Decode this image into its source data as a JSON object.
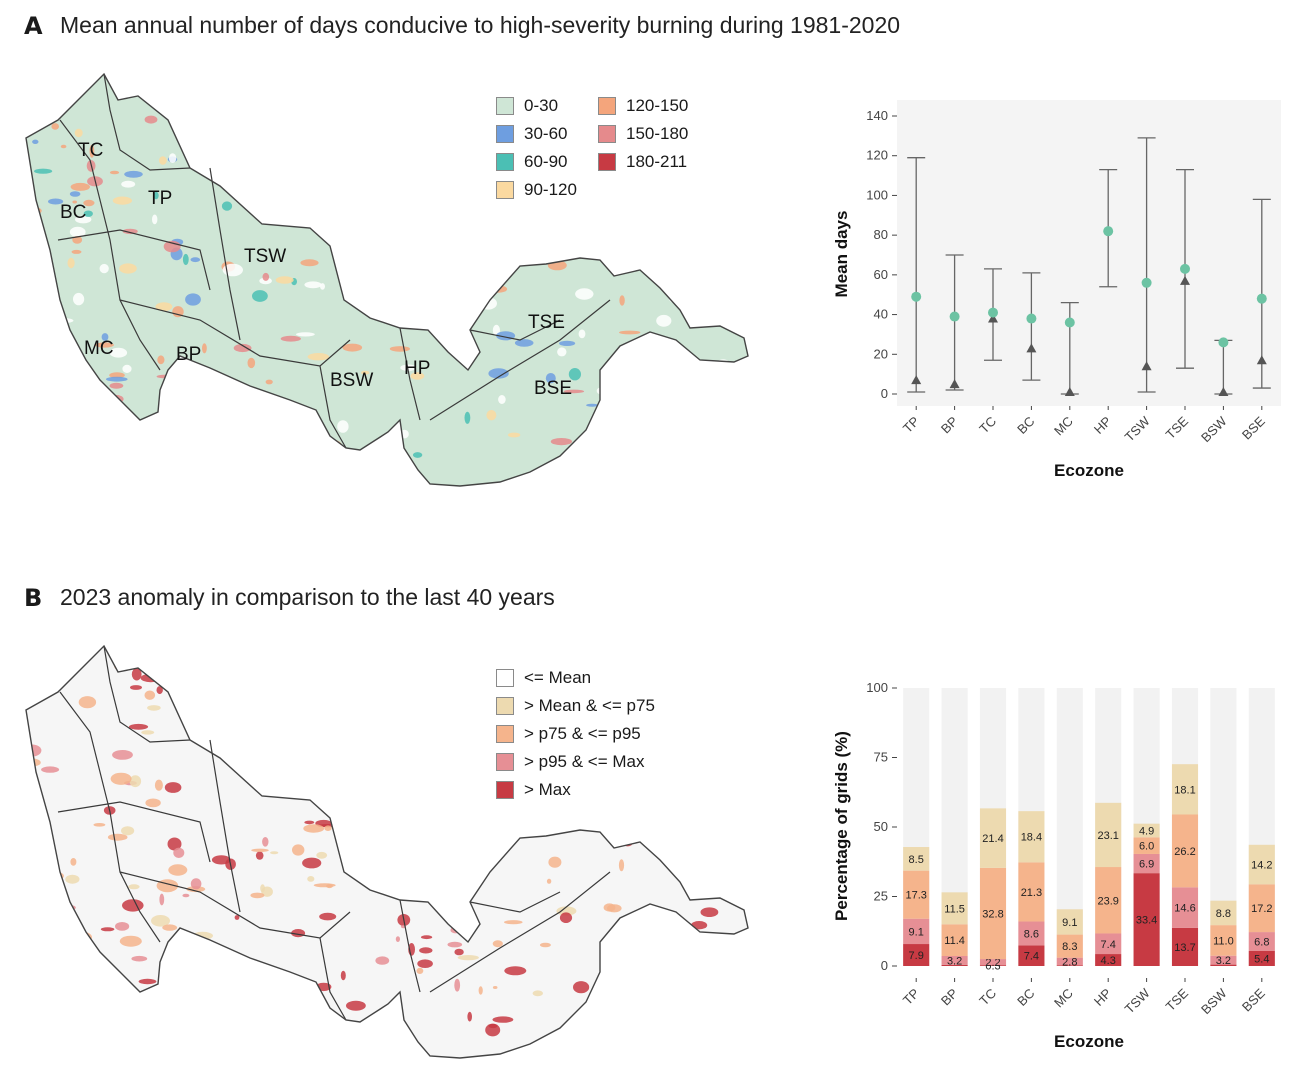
{
  "panel_a": {
    "letter": "A",
    "title": "Mean annual number of days conducive to high-severity burning during 1981-2020",
    "map_labels": [
      "TC",
      "TP",
      "BC",
      "TSW",
      "MC",
      "BP",
      "BSW",
      "HP",
      "TSE",
      "BSE"
    ],
    "legend": [
      {
        "label": "0-30",
        "color": "#cfe6d6"
      },
      {
        "label": "30-60",
        "color": "#6e9ee0"
      },
      {
        "label": "60-90",
        "color": "#4bbfb4"
      },
      {
        "label": "90-120",
        "color": "#fbd9a0"
      },
      {
        "label": "120-150",
        "color": "#f4a57c"
      },
      {
        "label": "150-180",
        "color": "#e58a8c"
      },
      {
        "label": "180-211",
        "color": "#c73a43"
      }
    ]
  },
  "panel_b": {
    "letter": "B",
    "title": "2023 anomaly in comparison to the last 40 years",
    "legend": [
      {
        "label": "<= Mean",
        "color": "#ffffff"
      },
      {
        "label": "> Mean & <= p75",
        "color": "#eddab0"
      },
      {
        "label": "> p75 & <= p95",
        "color": "#f5b48c"
      },
      {
        "label": "> p95 & <= Max",
        "color": "#e68f95"
      },
      {
        "label": "> Max",
        "color": "#c73a43"
      }
    ]
  },
  "chart_data": [
    {
      "type": "scatter",
      "xlabel": "Ecozone",
      "ylabel": "Mean days",
      "ylim": [
        0,
        140
      ],
      "yticks": [
        "0",
        "20",
        "40",
        "60",
        "80",
        "100",
        "120",
        "140"
      ],
      "categories": [
        "TP",
        "BP",
        "TC",
        "BC",
        "MC",
        "HP",
        "TSW",
        "TSE",
        "BSW",
        "BSE"
      ],
      "mean_values": [
        49,
        39,
        41,
        38,
        36,
        82,
        56,
        63,
        26,
        48
      ],
      "triangle_values": [
        7,
        5,
        38,
        23,
        1,
        null,
        14,
        57,
        1,
        17
      ],
      "range_min": [
        1,
        2,
        17,
        7,
        0,
        54,
        1,
        13,
        0,
        3
      ],
      "range_max": [
        119,
        70,
        63,
        61,
        46,
        113,
        129,
        113,
        27,
        98
      ],
      "colors": {
        "mean": "#6cc3a3",
        "triangle": "#555555",
        "whisker": "#666666",
        "panel_bg": "#f4f4f4"
      }
    },
    {
      "type": "bar",
      "stacked": true,
      "xlabel": "Ecozone",
      "ylabel": "Percentage of grids (%)",
      "ylim": [
        0,
        100
      ],
      "yticks": [
        "0",
        "25",
        "50",
        "75",
        "100"
      ],
      "categories": [
        "TP",
        "BP",
        "TC",
        "BC",
        "MC",
        "HP",
        "TSW",
        "TSE",
        "BSW",
        "BSE"
      ],
      "series": [
        {
          "color": "#c73a43",
          "values": [
            7.9,
            0.4,
            0.3,
            7.4,
            0.2,
            4.3,
            33.4,
            13.7,
            0.5,
            5.4
          ],
          "labels": [
            "7.9",
            "",
            "0.3",
            "7.4",
            "",
            "4.3",
            "33.4",
            "13.7",
            "",
            "5.4"
          ]
        },
        {
          "color": "#e68f95",
          "values": [
            9.1,
            3.2,
            2.2,
            8.6,
            2.8,
            7.4,
            6.9,
            14.6,
            3.2,
            6.8
          ],
          "labels": [
            "9.1",
            "3.2",
            "2.2",
            "8.6",
            "2.8",
            "7.4",
            "6.9",
            "14.6",
            "3.2",
            "6.8"
          ]
        },
        {
          "color": "#f5b48c",
          "values": [
            17.3,
            11.4,
            32.8,
            21.3,
            8.3,
            23.9,
            6.0,
            26.2,
            11.0,
            17.2
          ],
          "labels": [
            "17.3",
            "11.4",
            "32.8",
            "21.3",
            "8.3",
            "23.9",
            "6.0",
            "26.2",
            "11.0",
            "17.2"
          ]
        },
        {
          "color": "#eddab0",
          "values": [
            8.5,
            11.5,
            21.4,
            18.4,
            9.1,
            23.1,
            4.9,
            18.1,
            8.8,
            14.2
          ],
          "labels": [
            "8.5",
            "11.5",
            "21.4",
            "18.4",
            "9.1",
            "23.1",
            "4.9",
            "18.1",
            "8.8",
            "14.2"
          ]
        }
      ],
      "colors": {
        "remainder": "#f2f2f2"
      }
    }
  ]
}
